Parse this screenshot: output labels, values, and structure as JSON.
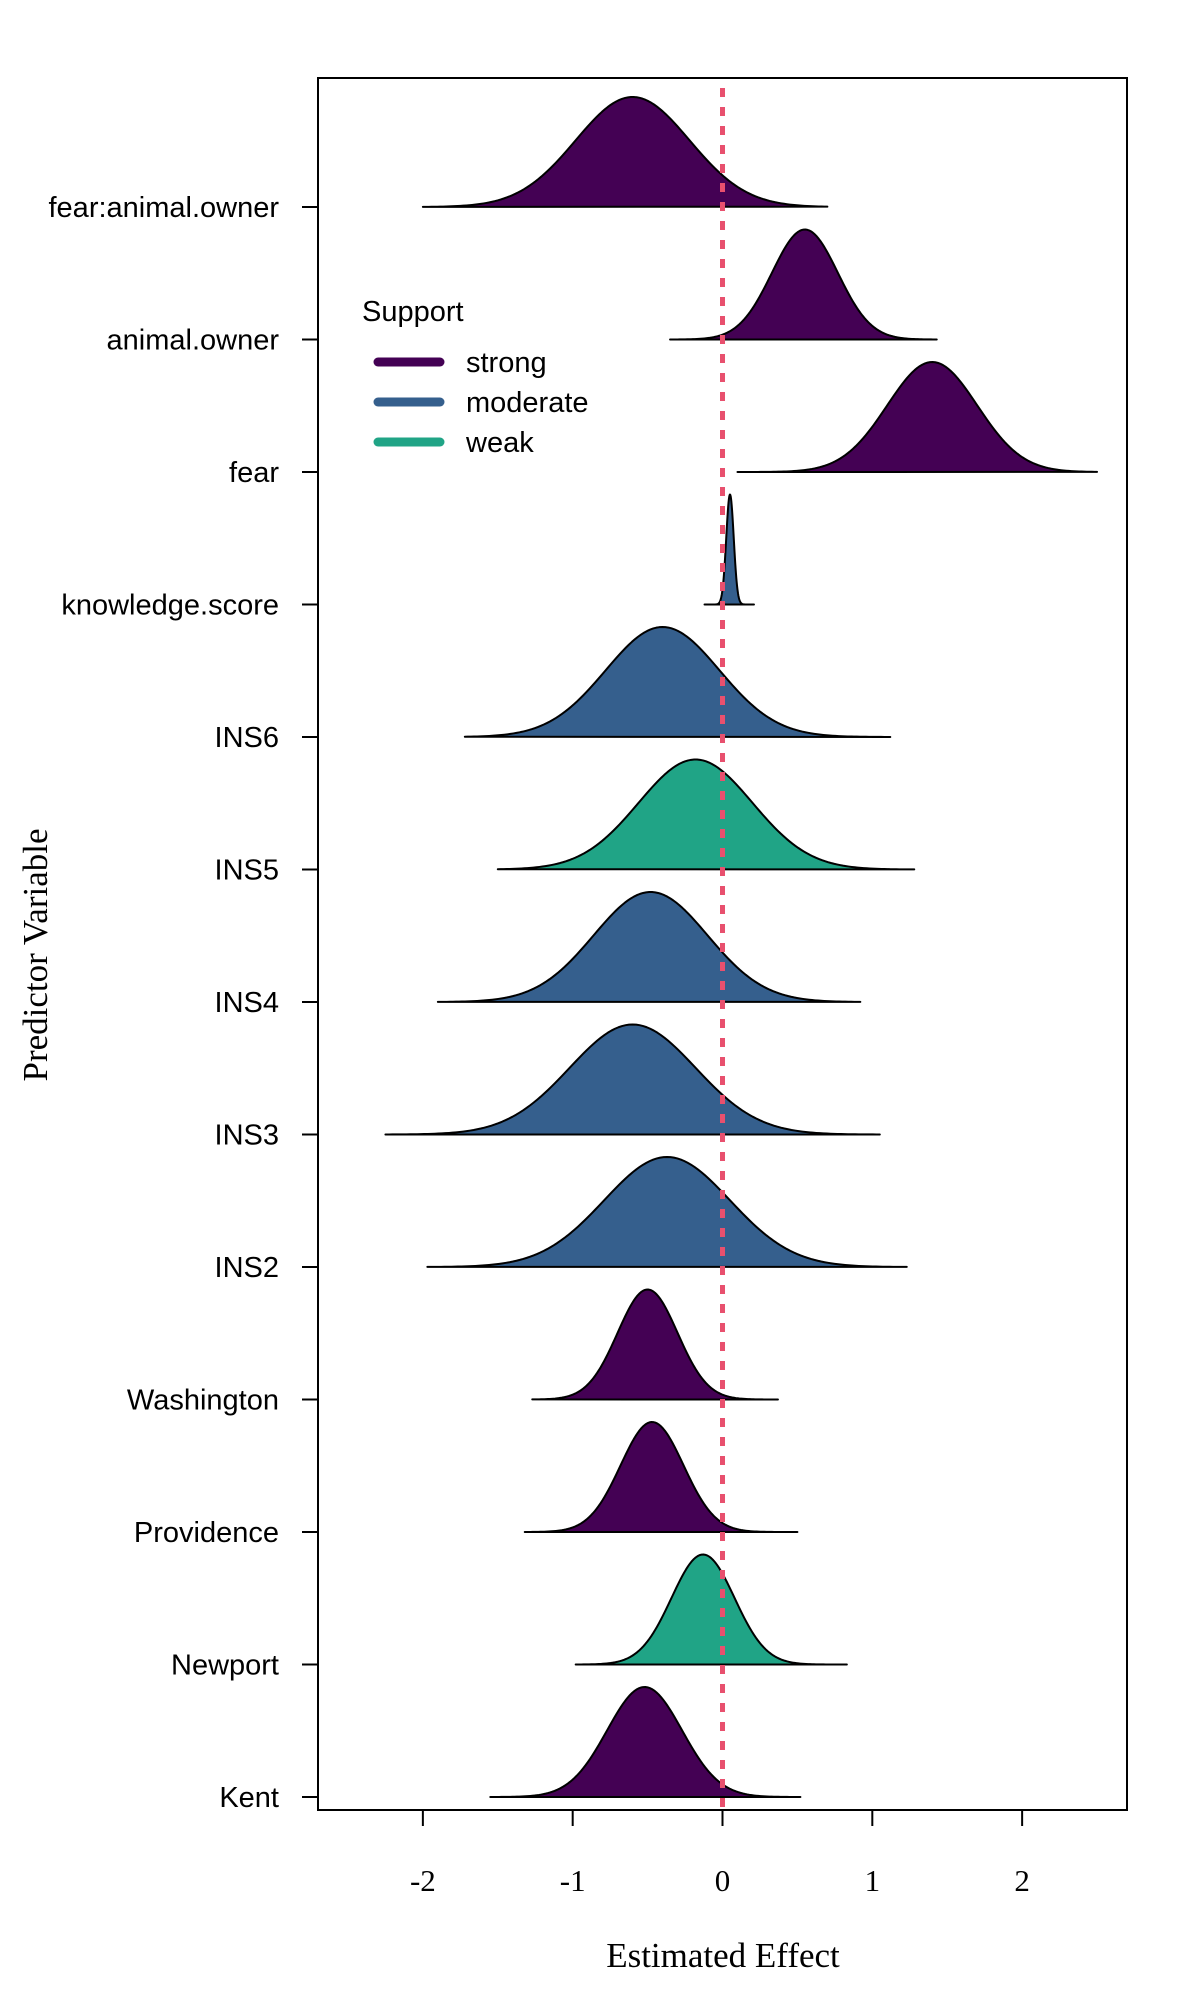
{
  "chart_data": {
    "type": "area",
    "xlabel": "Estimated Effect",
    "ylabel": "Predictor Variable",
    "xlim": [
      -2.7,
      2.7
    ],
    "x_ticks": [
      -2,
      -1,
      0,
      1,
      2
    ],
    "x_tick_labels": [
      "-2",
      "-1",
      "0",
      "1",
      "2"
    ],
    "reference_line": {
      "x": 0,
      "color": "#E8506E",
      "style": "dashed"
    },
    "grid": false,
    "legend": {
      "title": "Support",
      "placement": "top-left",
      "items": [
        {
          "label": "strong",
          "color": "#440154"
        },
        {
          "label": "moderate",
          "color": "#355F8D"
        },
        {
          "label": "weak",
          "color": "#20A486"
        }
      ]
    },
    "series": [
      {
        "label": "fear:animal.owner",
        "mean": -0.6,
        "sd": 0.38,
        "min": -2.0,
        "max": 0.7,
        "support": "strong"
      },
      {
        "label": "animal.owner",
        "mean": 0.55,
        "sd": 0.22,
        "min": -0.35,
        "max": 1.43,
        "support": "strong"
      },
      {
        "label": "fear",
        "mean": 1.4,
        "sd": 0.3,
        "min": 0.1,
        "max": 2.5,
        "support": "strong"
      },
      {
        "label": "knowledge.score",
        "mean": 0.05,
        "sd": 0.025,
        "min": -0.12,
        "max": 0.21,
        "support": "moderate"
      },
      {
        "label": "INS6",
        "mean": -0.4,
        "sd": 0.38,
        "min": -1.72,
        "max": 1.12,
        "support": "moderate"
      },
      {
        "label": "INS5",
        "mean": -0.18,
        "sd": 0.38,
        "min": -1.5,
        "max": 1.28,
        "support": "weak"
      },
      {
        "label": "INS4",
        "mean": -0.48,
        "sd": 0.38,
        "min": -1.9,
        "max": 0.92,
        "support": "moderate"
      },
      {
        "label": "INS3",
        "mean": -0.6,
        "sd": 0.42,
        "min": -2.25,
        "max": 1.05,
        "support": "moderate"
      },
      {
        "label": "INS2",
        "mean": -0.37,
        "sd": 0.42,
        "min": -1.97,
        "max": 1.23,
        "support": "moderate"
      },
      {
        "label": "Washington",
        "mean": -0.5,
        "sd": 0.2,
        "min": -1.27,
        "max": 0.37,
        "support": "strong"
      },
      {
        "label": "Providence",
        "mean": -0.47,
        "sd": 0.21,
        "min": -1.32,
        "max": 0.5,
        "support": "strong"
      },
      {
        "label": "Newport",
        "mean": -0.13,
        "sd": 0.21,
        "min": -0.98,
        "max": 0.83,
        "support": "weak"
      },
      {
        "label": "Kent",
        "mean": -0.52,
        "sd": 0.25,
        "min": -1.55,
        "max": 0.52,
        "support": "strong"
      }
    ]
  }
}
